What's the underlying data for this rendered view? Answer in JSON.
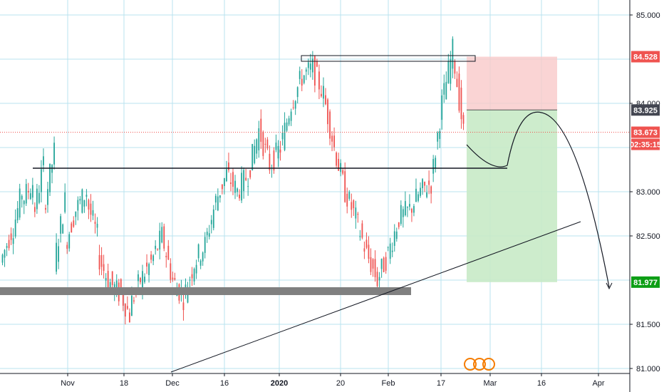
{
  "colors": {
    "up": "#26a69a",
    "down": "#ef5350",
    "grid": "#b9e3ef",
    "axis_bg": "#ffffff",
    "axis_line": "#131722",
    "current_price": "#ef5350",
    "stop_zone": "#f9c9c9",
    "target_zone": "#c8eac6",
    "target_tag": "#0d9e15",
    "entry_tag": "#434651",
    "zone_box": "#808080"
  },
  "chart_data": {
    "type": "candlestick",
    "title": "",
    "y_axis": {
      "range": [
        80.95,
        85.25
      ],
      "tick_labels": [
        "85.000",
        "84.000",
        "83.000",
        "82.500",
        "81.500",
        "81.000"
      ],
      "tick_values": [
        85.0,
        84.0,
        83.0,
        82.5,
        81.5,
        81.0
      ]
    },
    "x_axis": {
      "tick_labels": [
        "Nov",
        "18",
        "Dec",
        "16",
        "2020",
        "20",
        "Feb",
        "17",
        "Mar",
        "16",
        "Apr"
      ]
    },
    "price_tags": [
      {
        "name": "stop",
        "label": "84.528",
        "value": 84.528
      },
      {
        "name": "entry",
        "label": "83.925",
        "value": 83.925
      },
      {
        "name": "current",
        "label": "83.673",
        "value": 83.673
      },
      {
        "name": "countdown",
        "label": "02:35:15",
        "value": 83.5
      },
      {
        "name": "target",
        "label": "81.977",
        "value": 81.977
      }
    ],
    "candle_trend_anchors": [
      [
        82.2,
        82.55
      ],
      [
        82.5,
        83.0
      ],
      [
        82.9,
        83.1
      ],
      [
        82.7,
        83.3
      ],
      [
        82.8,
        83.45
      ],
      [
        82.2,
        82.9
      ],
      [
        82.4,
        82.8
      ],
      [
        82.8,
        83.0
      ],
      [
        82.9,
        82.5
      ],
      [
        82.3,
        82.0
      ],
      [
        82.0,
        81.85
      ],
      [
        81.9,
        81.6
      ],
      [
        81.7,
        82.0
      ],
      [
        82.0,
        82.2
      ],
      [
        82.2,
        82.5
      ],
      [
        82.5,
        82.0
      ],
      [
        82.0,
        81.8
      ],
      [
        81.8,
        82.2
      ],
      [
        82.2,
        82.4
      ],
      [
        82.4,
        82.9
      ],
      [
        82.9,
        83.2
      ],
      [
        83.2,
        83.0
      ],
      [
        83.0,
        83.2
      ],
      [
        83.2,
        83.7
      ],
      [
        83.7,
        83.3
      ],
      [
        83.3,
        83.5
      ],
      [
        83.5,
        84.0
      ],
      [
        84.0,
        84.3
      ],
      [
        84.3,
        84.4
      ],
      [
        84.4,
        84.1
      ],
      [
        84.1,
        83.5
      ],
      [
        83.5,
        83.0
      ],
      [
        83.0,
        82.7
      ],
      [
        82.7,
        82.3
      ],
      [
        82.3,
        82.0
      ],
      [
        82.0,
        82.3
      ],
      [
        82.3,
        82.7
      ],
      [
        82.7,
        82.8
      ],
      [
        82.8,
        83.0
      ],
      [
        83.0,
        83.1
      ],
      [
        83.1,
        84.0
      ],
      [
        84.0,
        84.6
      ],
      [
        84.6,
        83.673
      ]
    ]
  }
}
